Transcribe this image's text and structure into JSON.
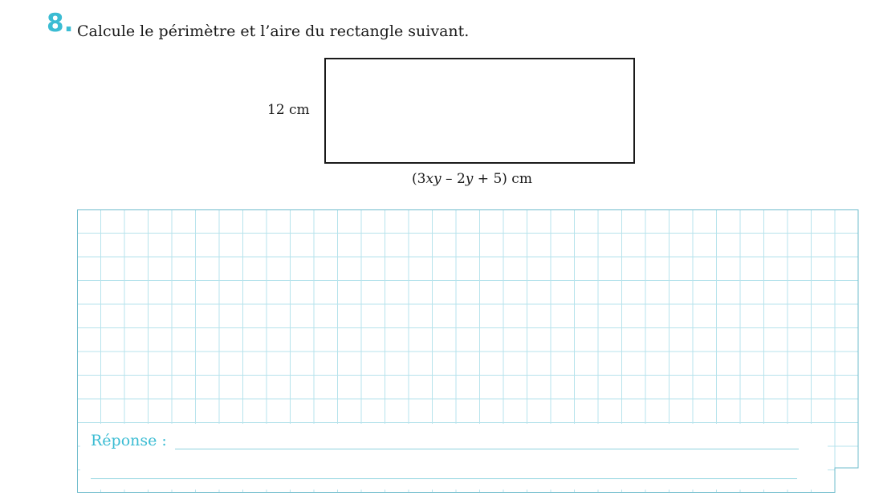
{
  "exercise": {
    "number": "8.",
    "statement": "Calcule le périmètre et l’aire du rectangle suivant."
  },
  "figure": {
    "side_label": "12 cm",
    "bottom_label_parts": [
      "(3",
      "xy",
      " – 2",
      "y",
      " + 5) cm"
    ]
  },
  "answer": {
    "label": "Réponse :"
  },
  "colors": {
    "accent": "#3bbcd3",
    "grid": "#b7e3ec",
    "grid_border": "#6fbccc",
    "answer_line": "#8fd3df"
  }
}
